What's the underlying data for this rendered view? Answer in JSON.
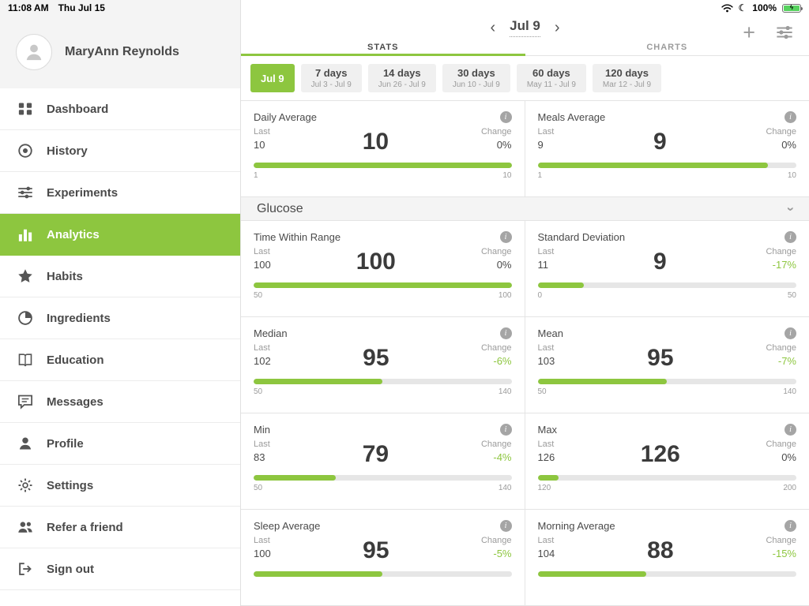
{
  "status_bar": {
    "time": "11:08 AM",
    "date": "Thu Jul 15",
    "battery": "100%",
    "icons": [
      "wifi-icon",
      "moon-icon",
      "battery-icon"
    ]
  },
  "colors": {
    "accent": "#8dc63f",
    "muted": "#9b9b9b",
    "battery_green": "#57d25f"
  },
  "sidebar": {
    "user": "MaryAnn Reynolds",
    "items": [
      {
        "label": "Dashboard",
        "icon": "grid",
        "active": false
      },
      {
        "label": "History",
        "icon": "record",
        "active": false
      },
      {
        "label": "Experiments",
        "icon": "sliders",
        "active": false
      },
      {
        "label": "Analytics",
        "icon": "bars",
        "active": true
      },
      {
        "label": "Habits",
        "icon": "star",
        "active": false
      },
      {
        "label": "Ingredients",
        "icon": "pie",
        "active": false
      },
      {
        "label": "Education",
        "icon": "book",
        "active": false
      },
      {
        "label": "Messages",
        "icon": "chat",
        "active": false
      },
      {
        "label": "Profile",
        "icon": "person",
        "active": false
      },
      {
        "label": "Settings",
        "icon": "gear",
        "active": false
      },
      {
        "label": "Refer a friend",
        "icon": "people",
        "active": false
      },
      {
        "label": "Sign out",
        "icon": "logout",
        "active": false
      }
    ]
  },
  "header": {
    "date": "Jul 9"
  },
  "tabs": [
    {
      "label": "STATS",
      "active": true
    },
    {
      "label": "CHARTS",
      "active": false
    }
  ],
  "ranges": [
    {
      "label": "Jul 9",
      "sub": "",
      "active": true
    },
    {
      "label": "7 days",
      "sub": "Jul 3 - Jul 9",
      "active": false
    },
    {
      "label": "14 days",
      "sub": "Jun 26 - Jul 9",
      "active": false
    },
    {
      "label": "30 days",
      "sub": "Jun 10 - Jul 9",
      "active": false
    },
    {
      "label": "60 days",
      "sub": "May 11 - Jul 9",
      "active": false
    },
    {
      "label": "120 days",
      "sub": "Mar 12 - Jul 9",
      "active": false
    }
  ],
  "stats": {
    "labels": {
      "last": "Last",
      "change": "Change"
    },
    "top_cards": [
      {
        "title": "Daily Average",
        "last": "10",
        "value": "10",
        "change": "0%",
        "min": "1",
        "max": "10",
        "fill": 100
      },
      {
        "title": "Meals Average",
        "last": "9",
        "value": "9",
        "change": "0%",
        "min": "1",
        "max": "10",
        "fill": 89
      }
    ],
    "glucose_section": {
      "title": "Glucose"
    },
    "glucose_cards": [
      {
        "title": "Time Within Range",
        "last": "100",
        "value": "100",
        "change": "0%",
        "min": "50",
        "max": "100",
        "fill": 100
      },
      {
        "title": "Standard Deviation",
        "last": "11",
        "value": "9",
        "change": "-17%",
        "min": "0",
        "max": "50",
        "fill": 18
      },
      {
        "title": "Median",
        "last": "102",
        "value": "95",
        "change": "-6%",
        "min": "50",
        "max": "140",
        "fill": 50
      },
      {
        "title": "Mean",
        "last": "103",
        "value": "95",
        "change": "-7%",
        "min": "50",
        "max": "140",
        "fill": 50
      },
      {
        "title": "Min",
        "last": "83",
        "value": "79",
        "change": "-4%",
        "min": "50",
        "max": "140",
        "fill": 32
      },
      {
        "title": "Max",
        "last": "126",
        "value": "126",
        "change": "0%",
        "min": "120",
        "max": "200",
        "fill": 8
      },
      {
        "title": "Sleep Average",
        "last": "100",
        "value": "95",
        "change": "-5%",
        "min": "",
        "max": "",
        "fill": 50
      },
      {
        "title": "Morning Average",
        "last": "104",
        "value": "88",
        "change": "-15%",
        "min": "",
        "max": "",
        "fill": 42
      }
    ]
  }
}
